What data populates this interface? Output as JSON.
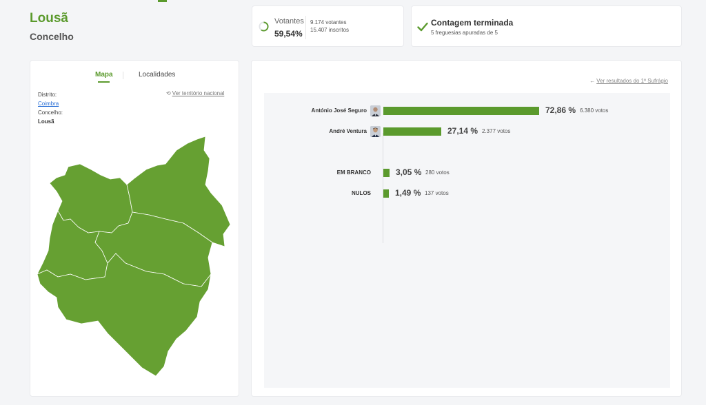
{
  "header": {
    "title": "Lousã",
    "subtitle": "Concelho"
  },
  "turnout": {
    "label": "Votantes",
    "percent": "59,54%",
    "percent_value": 59.54,
    "voters": "9.174 votantes",
    "registered": "15.407 inscritos"
  },
  "counting": {
    "title": "Contagem terminada",
    "subtitle": "5 freguesias apuradas de 5"
  },
  "map_panel": {
    "tabs": [
      {
        "label": "Mapa",
        "active": true
      },
      {
        "label": "Localidades",
        "active": false
      }
    ],
    "district_label": "Distrito:",
    "district_value": "Coimbra",
    "county_label": "Concelho:",
    "county_value": "Lousã",
    "national_link": "Ver território nacional",
    "map_fill_color": "#66a032"
  },
  "results": {
    "back_link": "Ver resultados do 1º Sufrágio",
    "bar_color": "#5b9a2d",
    "candidates": [
      {
        "name": "António José Seguro",
        "percent": "72,86 %",
        "percent_value": 72.86,
        "votes": "6.380 votos",
        "avatar": "candidate-photo"
      },
      {
        "name": "André Ventura",
        "percent": "27,14 %",
        "percent_value": 27.14,
        "votes": "2.377 votos",
        "avatar": "candidate-photo"
      }
    ],
    "other": [
      {
        "name": "EM BRANCO",
        "percent": "3,05 %",
        "percent_value": 3.05,
        "votes": "280 votos"
      },
      {
        "name": "NULOS",
        "percent": "1,49 %",
        "percent_value": 1.49,
        "votes": "137 votos"
      }
    ]
  }
}
